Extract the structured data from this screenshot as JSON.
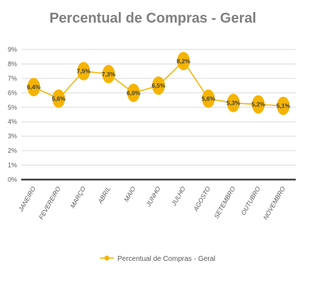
{
  "chart_data": {
    "type": "line",
    "title": "Percentual de Compras  - Geral",
    "categories": [
      "JANEIRO",
      "FEVEREIRO",
      "MARÇO",
      "ABRIL",
      "MAIO",
      "JUNHO",
      "JULHO",
      "AGOSTO",
      "SETEMBRO",
      "OUTUBRO",
      "NOVEMBRO"
    ],
    "series": [
      {
        "name": "Percentual de Compras - Geral",
        "values": [
          6.4,
          5.6,
          7.5,
          7.3,
          6.0,
          6.5,
          8.2,
          5.6,
          5.3,
          5.2,
          5.1
        ],
        "labels": [
          "6,4%",
          "5,6%",
          "7,5%",
          "7,3%",
          "6,0%",
          "6,5%",
          "8,2%",
          "5,6%",
          "5,3%",
          "5,2%",
          "5,1%"
        ],
        "color": "#f5b400"
      }
    ],
    "ylim": [
      0,
      9
    ],
    "yticks": [
      "0%",
      "1%",
      "2%",
      "3%",
      "4%",
      "5%",
      "6%",
      "7%",
      "8%",
      "9%"
    ],
    "grid": true,
    "legend": "bottom"
  }
}
